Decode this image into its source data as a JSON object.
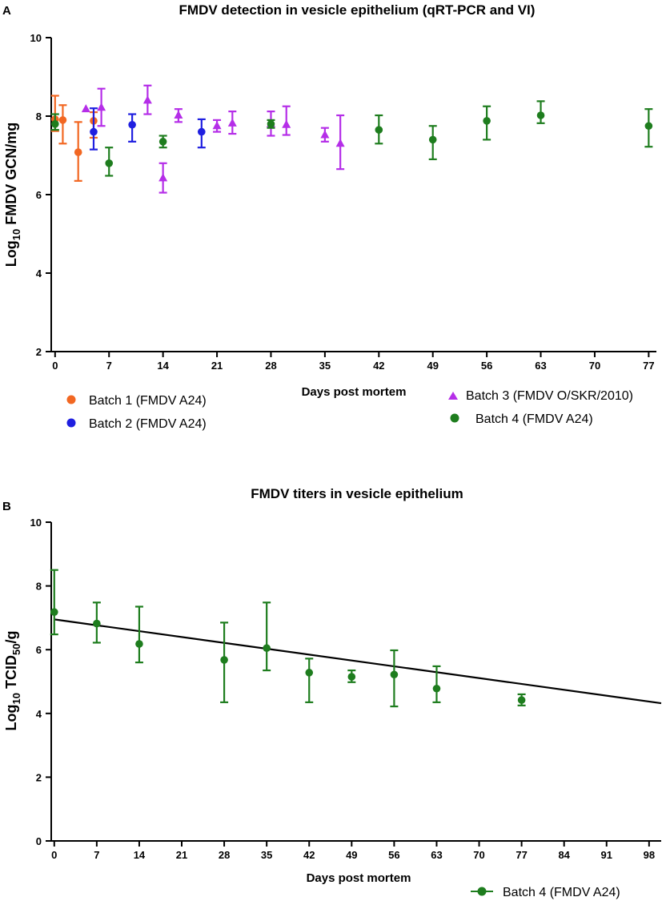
{
  "chart_data": [
    {
      "panel": "A",
      "type": "scatter",
      "title": "FMDV detection in vesicle epithelium (qRT-PCR and VI)",
      "xlabel": "Days post mortem",
      "ylabel": "Log10 FMDV GCN/mg",
      "ylabel_main": "Log",
      "ylabel_sub": "10",
      "ylabel_rest": " FMDV GCN/mg",
      "xlim": [
        -0.5,
        78
      ],
      "ylim": [
        2,
        10
      ],
      "xticks": [
        0,
        7,
        14,
        21,
        28,
        35,
        42,
        49,
        56,
        63,
        70,
        77
      ],
      "yticks": [
        2,
        4,
        6,
        8,
        10
      ],
      "grid": false,
      "series": [
        {
          "name": "Batch 1 (FMDV A24)",
          "color": "#f26722",
          "marker": "circle",
          "points": [
            {
              "x": 0,
              "y": 7.92,
              "lo": 7.62,
              "hi": 8.52
            },
            {
              "x": 1,
              "y": 7.9,
              "lo": 7.3,
              "hi": 8.28
            },
            {
              "x": 3,
              "y": 7.08,
              "lo": 6.35,
              "hi": 7.85
            },
            {
              "x": 5,
              "y": 7.88,
              "lo": 7.45,
              "hi": 8.1
            }
          ]
        },
        {
          "name": "Batch 2 (FMDV A24)",
          "color": "#1f1fe0",
          "marker": "circle",
          "points": [
            {
              "x": 5,
              "y": 7.6,
              "lo": 7.15,
              "hi": 8.2
            },
            {
              "x": 10,
              "y": 7.78,
              "lo": 7.35,
              "hi": 8.05
            },
            {
              "x": 19,
              "y": 7.6,
              "lo": 7.2,
              "hi": 7.92
            }
          ]
        },
        {
          "name": "Batch 3 (FMDV O/SKR/2010)",
          "color": "#b52ee8",
          "marker": "triangle",
          "points": [
            {
              "x": 4,
              "y": 8.18
            },
            {
              "x": 6,
              "y": 8.22,
              "lo": 7.75,
              "hi": 8.7
            },
            {
              "x": 12,
              "y": 8.4,
              "lo": 8.05,
              "hi": 8.78
            },
            {
              "x": 14,
              "y": 6.42,
              "lo": 6.05,
              "hi": 6.8
            },
            {
              "x": 16,
              "y": 8.02,
              "lo": 7.85,
              "hi": 8.18
            },
            {
              "x": 21,
              "y": 7.75,
              "lo": 7.6,
              "hi": 7.9
            },
            {
              "x": 23,
              "y": 7.82,
              "lo": 7.55,
              "hi": 8.12
            },
            {
              "x": 28,
              "y": 7.8,
              "lo": 7.5,
              "hi": 8.12
            },
            {
              "x": 30,
              "y": 7.78,
              "lo": 7.52,
              "hi": 8.25
            },
            {
              "x": 35,
              "y": 7.52,
              "lo": 7.35,
              "hi": 7.7
            },
            {
              "x": 37,
              "y": 7.3,
              "lo": 6.65,
              "hi": 8.02
            }
          ]
        },
        {
          "name": "Batch 4 (FMDV A24)",
          "color": "#1e7d1e",
          "marker": "circle",
          "points": [
            {
              "x": 0,
              "y": 7.8,
              "lo": 7.65,
              "hi": 8.05
            },
            {
              "x": 7,
              "y": 6.8,
              "lo": 6.48,
              "hi": 7.2
            },
            {
              "x": 14,
              "y": 7.35,
              "lo": 7.2,
              "hi": 7.5
            },
            {
              "x": 28,
              "y": 7.8,
              "lo": 7.7,
              "hi": 7.9
            },
            {
              "x": 42,
              "y": 7.65,
              "lo": 7.3,
              "hi": 8.02
            },
            {
              "x": 49,
              "y": 7.4,
              "lo": 6.9,
              "hi": 7.75
            },
            {
              "x": 56,
              "y": 7.88,
              "lo": 7.4,
              "hi": 8.25
            },
            {
              "x": 63,
              "y": 8.02,
              "lo": 7.82,
              "hi": 8.38
            },
            {
              "x": 77,
              "y": 7.75,
              "lo": 7.22,
              "hi": 8.18
            }
          ]
        }
      ],
      "legend_position": "bottom"
    },
    {
      "panel": "B",
      "type": "scatter",
      "title": "FMDV titers in vesicle epithelium",
      "xlabel": "Days post mortem",
      "ylabel": "Log10 TCID50/g",
      "ylabel_main": "Log",
      "ylabel_sub": "10",
      "ylabel_mid": " TCID",
      "ylabel_sub2": "50",
      "ylabel_rest": "/g",
      "xlim": [
        -0.5,
        100
      ],
      "ylim": [
        0,
        10
      ],
      "xticks": [
        0,
        7,
        14,
        21,
        28,
        35,
        42,
        49,
        56,
        63,
        70,
        77,
        84,
        91,
        98
      ],
      "yticks": [
        0,
        2,
        4,
        6,
        8,
        10
      ],
      "grid": false,
      "series": [
        {
          "name": "Batch 4 (FMDV A24)",
          "color": "#1e7d1e",
          "marker": "circle",
          "points": [
            {
              "x": 0,
              "y": 7.18,
              "lo": 6.48,
              "hi": 8.5
            },
            {
              "x": 7,
              "y": 6.82,
              "lo": 6.22,
              "hi": 7.48
            },
            {
              "x": 14,
              "y": 6.18,
              "lo": 5.6,
              "hi": 7.35
            },
            {
              "x": 28,
              "y": 5.68,
              "lo": 4.35,
              "hi": 6.85
            },
            {
              "x": 35,
              "y": 6.05,
              "lo": 5.35,
              "hi": 7.48
            },
            {
              "x": 42,
              "y": 5.28,
              "lo": 4.35,
              "hi": 5.72
            },
            {
              "x": 49,
              "y": 5.15,
              "lo": 4.98,
              "hi": 5.35
            },
            {
              "x": 56,
              "y": 5.22,
              "lo": 4.22,
              "hi": 5.98
            },
            {
              "x": 63,
              "y": 4.78,
              "lo": 4.35,
              "hi": 5.48
            },
            {
              "x": 77,
              "y": 4.42,
              "lo": 4.25,
              "hi": 4.6
            }
          ]
        }
      ],
      "regression_line": {
        "x": [
          0,
          100
        ],
        "y": [
          6.95,
          4.32
        ],
        "color": "#000000"
      },
      "legend_position": "bottom-right"
    }
  ]
}
